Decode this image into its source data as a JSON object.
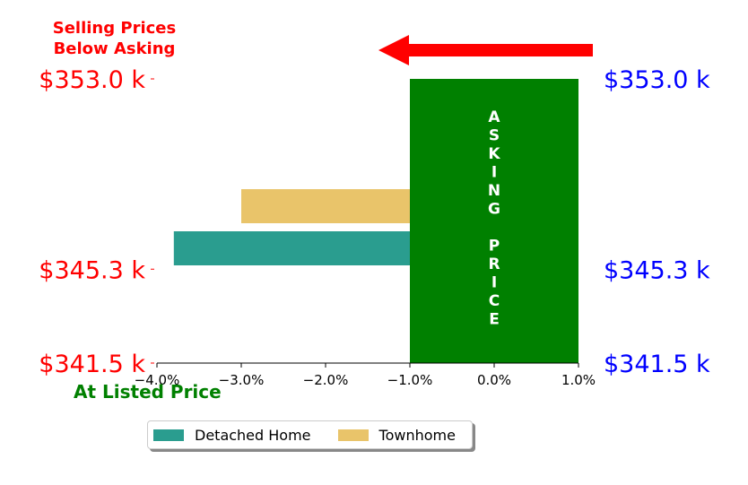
{
  "chart_data": {
    "type": "bar",
    "orientation": "horizontal",
    "categories": [
      "Detached Home",
      "Townhome"
    ],
    "series": [
      {
        "name": "Detached Home",
        "value": -3.8,
        "color": "#2a9d8f"
      },
      {
        "name": "Townhome",
        "value": -3.0,
        "color": "#e9c46a"
      }
    ],
    "asking_band": {
      "from": -1.0,
      "to": 1.0,
      "color": "#008000",
      "label_lines": [
        "A",
        "S",
        "K",
        "I",
        "N",
        "G",
        "",
        "P",
        "R",
        "I",
        "C",
        "E"
      ]
    },
    "xticks": [
      "−4.0%",
      "−3.0%",
      "−2.0%",
      "−1.0%",
      "0.0%",
      "1.0%"
    ],
    "xtick_values": [
      -4.0,
      -3.0,
      -2.0,
      -1.0,
      0.0,
      1.0
    ],
    "xlim": [
      -4.0,
      1.0
    ],
    "ylim": [
      341.5,
      353.0
    ],
    "left_price_labels": [
      "$353.0 k",
      "$345.3 k",
      "$341.5 k"
    ],
    "right_price_labels": [
      "$353.0 k",
      "$345.3 k",
      "$341.5 k"
    ],
    "price_values": [
      353.0,
      345.3,
      341.5
    ],
    "left_label_color": "#ff0000",
    "right_label_color": "#0000ff",
    "arrow_color": "#ff0000",
    "grid": false
  },
  "annotations": {
    "top_left_line1": "Selling Prices",
    "top_left_line2": "Below Asking",
    "bottom_left": "At Listed Price"
  },
  "legend": {
    "items": [
      {
        "label": "Detached Home",
        "color": "#2a9d8f"
      },
      {
        "label": "Townhome",
        "color": "#e9c46a"
      }
    ]
  }
}
